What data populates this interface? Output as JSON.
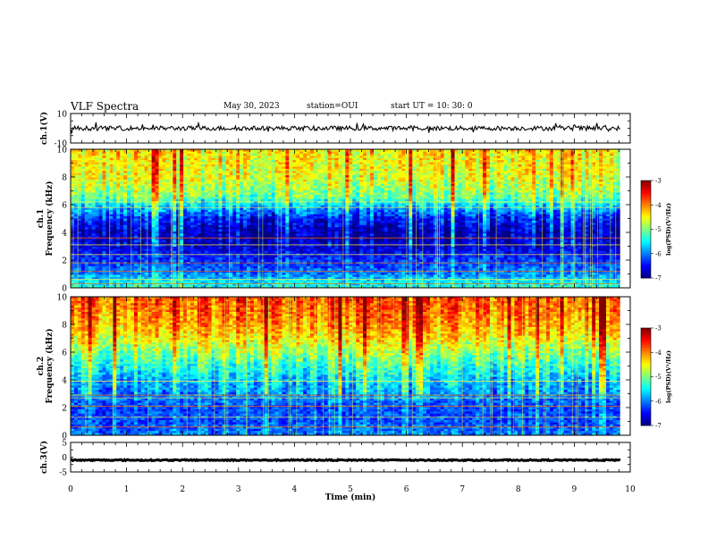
{
  "header": {
    "title": "VLF Spectra",
    "date": "May 30, 2023",
    "station": "station=OUI",
    "start": "start  UT =   10: 30: 0"
  },
  "chart_data": {
    "type": "heatmap",
    "x_axis": {
      "label": "Time  (min)",
      "range": [
        0,
        10
      ],
      "ticks": [
        0,
        1,
        2,
        3,
        4,
        5,
        6,
        7,
        8,
        9,
        10
      ],
      "data_end_min": 9.82
    },
    "panels": [
      {
        "id": "ch1-waveform",
        "type": "line",
        "ylabel": "ch.1(V)",
        "ylim": [
          -10,
          10
        ],
        "y_ticks": [
          "10",
          "-10"
        ],
        "signal": {
          "baseline": 0,
          "typical_amplitude": 1.5,
          "spike_amplitude": 4
        }
      },
      {
        "id": "ch1-spectrogram",
        "type": "heatmap",
        "ylabel_line1": "ch.1",
        "ylabel_line2": "Frequency  (kHz)",
        "ylim_khz": [
          0,
          10
        ],
        "y_ticks": [
          "0",
          "2",
          "4",
          "6",
          "8",
          "10"
        ],
        "colorbar": {
          "label": "log(PSD)(V²/Hz)",
          "range": [
            -7,
            -3
          ],
          "ticks": [
            "-3",
            "-4",
            "-5",
            "-6",
            "-7"
          ]
        },
        "profile_khz": [
          0,
          0.5,
          1,
          2,
          3,
          4,
          5,
          6,
          6.5,
          7,
          8,
          9,
          10
        ],
        "profile_logpsd": [
          -5.4,
          -5.6,
          -6.0,
          -6.3,
          -6.7,
          -6.8,
          -6.4,
          -5.6,
          -5.1,
          -4.9,
          -4.6,
          -4.5,
          -4.4
        ],
        "hum_lines_khz": [
          0.3,
          0.6,
          1.2,
          1.8,
          2.4,
          3.1,
          3.6,
          5.8,
          6.2
        ]
      },
      {
        "id": "ch2-spectrogram",
        "type": "heatmap",
        "ylabel_line1": "ch.2",
        "ylabel_line2": "Frequency  (kHz)",
        "ylim_khz": [
          0,
          10
        ],
        "y_ticks": [
          "0",
          "2",
          "4",
          "6",
          "8",
          "10"
        ],
        "colorbar": {
          "label": "log(PSD)(V²/Hz)",
          "range": [
            -7,
            -3
          ],
          "ticks": [
            "-3",
            "-4",
            "-5",
            "-6",
            "-7"
          ]
        },
        "profile_khz": [
          0,
          1,
          2,
          3,
          4,
          5,
          6,
          7,
          8,
          9,
          10
        ],
        "profile_logpsd": [
          -6.0,
          -6.2,
          -6.2,
          -5.9,
          -5.7,
          -5.3,
          -4.9,
          -4.4,
          -4.1,
          -3.9,
          -3.8
        ],
        "hum_lines_khz": [
          0.6,
          1.3,
          2.1,
          2.7,
          2.9,
          3.9
        ]
      },
      {
        "id": "ch3-waveform",
        "type": "line",
        "ylabel": "ch.3(V)",
        "ylim": [
          -5,
          5
        ],
        "y_ticks": [
          "5",
          "0",
          "-5"
        ],
        "signal": {
          "baseline": -1.0,
          "typical_amplitude": 0.2,
          "spike_amplitude": 0.2
        }
      }
    ]
  }
}
